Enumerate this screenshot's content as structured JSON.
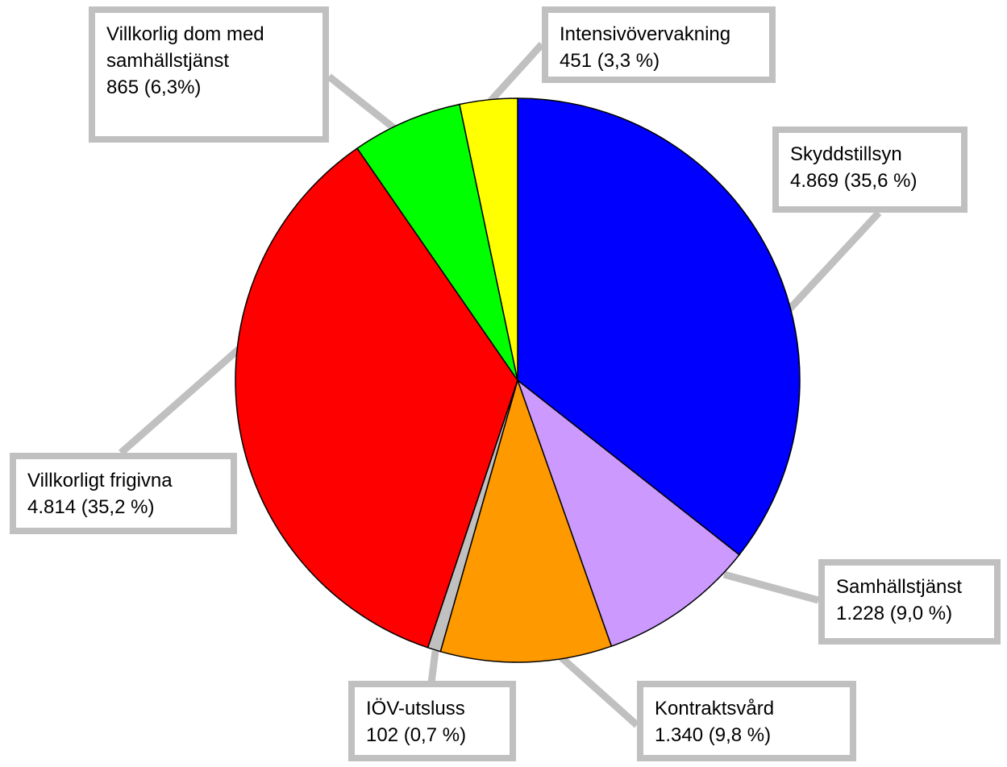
{
  "chart_data": {
    "type": "pie",
    "categories": [
      "Skyddstillsyn",
      "Samhällstjänst",
      "Kontraktsvård",
      "IÖV-utsluss",
      "Villkorligt frigivna",
      "Villkorlig dom med samhällstjänst",
      "Intensivövervakning"
    ],
    "values": [
      4869,
      1228,
      1340,
      102,
      4814,
      865,
      451
    ],
    "value_labels": [
      "4.869 (35,6 %)",
      "1.228 (9,0 %)",
      "1.340 (9,8 %)",
      "102 (0,7 %)",
      "4.814 (35,2 %)",
      "865 (6,3%)",
      "451 (3,3 %)"
    ],
    "colors": [
      "#0000ff",
      "#cc99ff",
      "#ff9900",
      "#c0c0c0",
      "#ff0000",
      "#00ff00",
      "#ffff00"
    ]
  }
}
